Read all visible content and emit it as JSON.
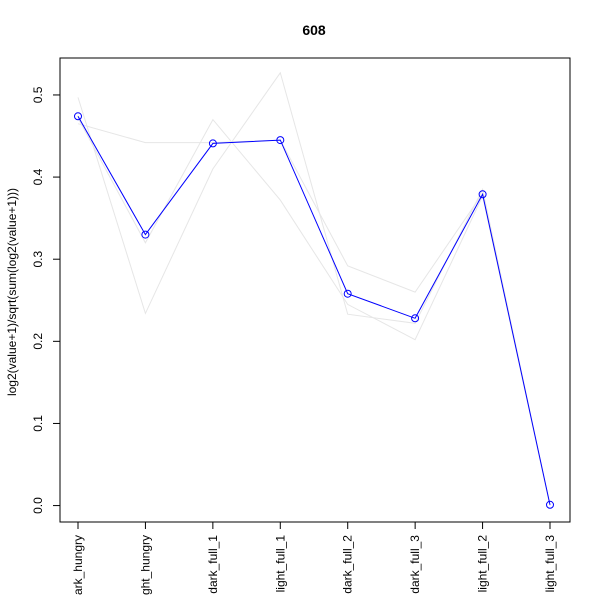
{
  "chart_data": {
    "type": "line",
    "title": "608",
    "xlabel": "",
    "ylabel": "log2(value+1)/sqrt(sum(log2(value+1)))",
    "categories": [
      "dark_hungry",
      "light_hungry",
      "dark_full_1",
      "light_full_1",
      "dark_full_2",
      "dark_full_3",
      "light_full_2",
      "light_full_3"
    ],
    "tick_labels": [
      "ark_hungry",
      "ght_hungry",
      "dark_full_1",
      "light_full_1",
      "dark_full_2",
      "dark_full_3",
      "light_full_2",
      "light_full_3"
    ],
    "y_ticks": [
      0.0,
      0.1,
      0.2,
      0.3,
      0.4,
      0.5
    ],
    "y_tick_labels": [
      "0.0",
      "0.1",
      "0.2",
      "0.3",
      "0.4",
      "0.5"
    ],
    "ylim": [
      -0.02,
      0.545
    ],
    "grid": false,
    "series": [
      {
        "color": "#0000ff",
        "marker": "circle",
        "highlight": true,
        "values": [
          0.474,
          0.33,
          0.441,
          0.445,
          0.258,
          0.228,
          0.379,
          0.001
        ]
      },
      {
        "color": "#e6e6e6",
        "marker": "none",
        "highlight": false,
        "values": [
          0.497,
          0.234,
          0.41,
          0.527,
          0.233,
          0.222,
          0.385,
          0.0
        ]
      },
      {
        "color": "#e6e6e6",
        "marker": "none",
        "highlight": false,
        "values": [
          0.465,
          0.442,
          0.442,
          0.445,
          0.292,
          0.26,
          0.38,
          0.0
        ]
      },
      {
        "color": "#e6e6e6",
        "marker": "none",
        "highlight": false,
        "values": [
          0.472,
          0.32,
          0.47,
          0.372,
          0.245,
          0.202,
          0.377,
          0.0
        ]
      }
    ]
  }
}
